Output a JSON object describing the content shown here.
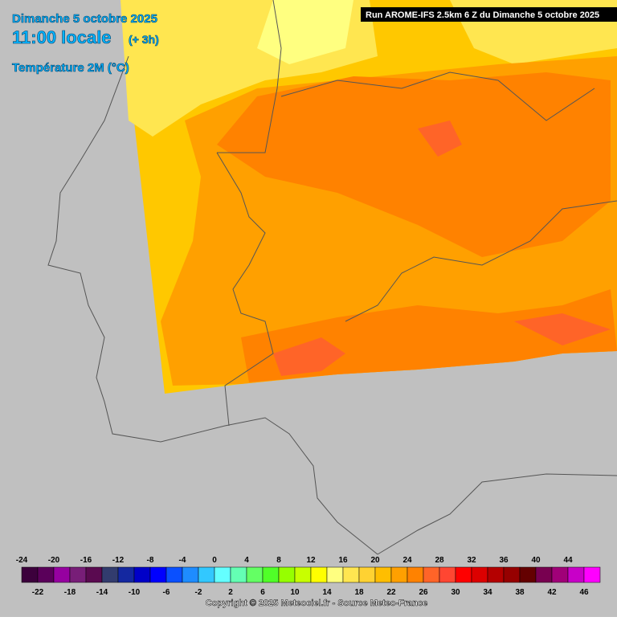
{
  "header": {
    "date": "Dimanche 5 octobre 2025",
    "time": "11:00 locale",
    "offset": "(+ 3h)",
    "parameter": "Température 2M (°C)",
    "run": "Run AROME-IFS 2.5km 6 Z du Dimanche 5 octobre 2025"
  },
  "legend": {
    "ticks": [
      -24,
      -22,
      -20,
      -18,
      -16,
      -14,
      -12,
      -10,
      -8,
      -6,
      -4,
      -2,
      0,
      2,
      4,
      6,
      8,
      10,
      12,
      14,
      16,
      18,
      20,
      22,
      24,
      26,
      28,
      30,
      32,
      34,
      36,
      38,
      40,
      42,
      44,
      46
    ],
    "colors": [
      "#3c003c",
      "#5a005a",
      "#9600a0",
      "#781e78",
      "#5a0a50",
      "#323c6e",
      "#1428a0",
      "#0000c8",
      "#0000ff",
      "#0a50ff",
      "#1e8cff",
      "#32c8ff",
      "#64ffff",
      "#64ffb4",
      "#64ff64",
      "#50ff28",
      "#96ff00",
      "#c8ff00",
      "#ffff00",
      "#ffff80",
      "#ffe650",
      "#ffd232",
      "#ffbe00",
      "#ffa000",
      "#ff8200",
      "#ff6428",
      "#ff4632",
      "#ff0000",
      "#dc0000",
      "#b40000",
      "#960000",
      "#640000",
      "#780050",
      "#a00078",
      "#c800c8",
      "#ff00ff",
      "#ff64ff"
    ]
  },
  "footer": {
    "copyright": "Copyright © 2025 Meteociel.fr - Source Meteo-France"
  }
}
